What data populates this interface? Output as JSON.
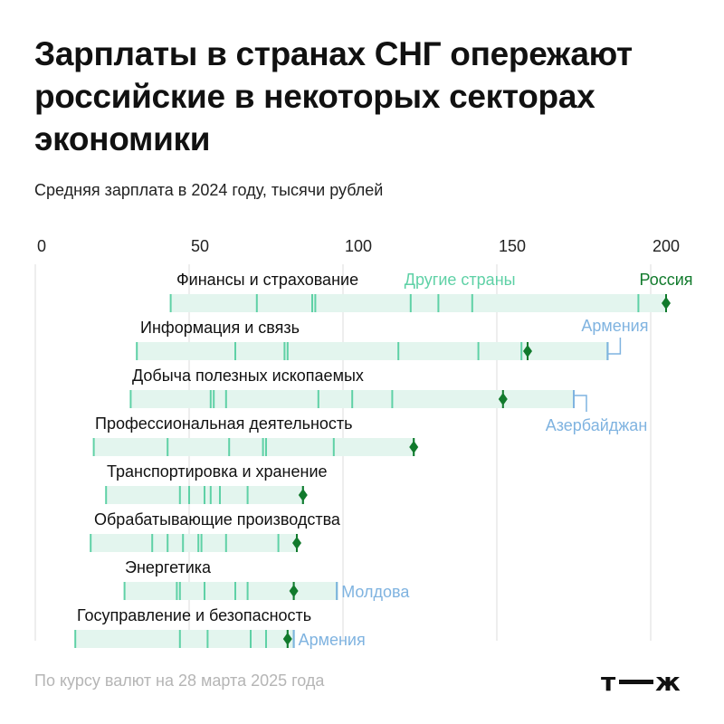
{
  "title": "Зарплаты в странах СНГ опережают российские в некоторых секторах экономики",
  "subtitle": "Средняя зарплата в 2024 году, тысячи рублей",
  "footnote": "По курсу валют на 28 марта 2025 года",
  "logo_text": "т—ж",
  "colors": {
    "band": "#e3f5ee",
    "tick": "#5fd1a6",
    "russia": "#117a2c",
    "highlight": "#7fb3e0",
    "gridline": "#e8e8e8",
    "axis_text": "#222222"
  },
  "chart_data": {
    "type": "dot-strip",
    "xlim": [
      0,
      210
    ],
    "x_ticks": [
      0,
      50,
      100,
      150,
      200
    ],
    "legend": [
      {
        "label": "Другие страны",
        "color": "#5fd1a6"
      },
      {
        "label": "Россия",
        "color": "#117a2c"
      }
    ],
    "sectors": [
      {
        "name": "Финансы и страхование",
        "russia": 205,
        "others": [
          44,
          72,
          90,
          91,
          122,
          131,
          142,
          196,
          205
        ],
        "highlight": null
      },
      {
        "name": "Информация и связь",
        "russia": 160,
        "others": [
          33,
          65,
          81,
          82,
          118,
          144,
          158,
          186
        ],
        "highlight": {
          "value": 186,
          "label": "Армения"
        }
      },
      {
        "name": "Добыча полезных ископаемых",
        "russia": 152,
        "others": [
          31,
          57,
          58,
          62,
          92,
          103,
          116,
          175
        ],
        "highlight": {
          "value": 175,
          "label": "Азербайджан"
        }
      },
      {
        "name": "Профессиональная деятельность",
        "russia": 123,
        "others": [
          19,
          43,
          63,
          74,
          75,
          97,
          123
        ],
        "highlight": null
      },
      {
        "name": "Транспортировка и хранение",
        "russia": 87,
        "others": [
          23,
          47,
          50,
          55,
          57,
          60,
          69,
          87
        ],
        "highlight": null
      },
      {
        "name": "Обрабатывающие производства",
        "russia": 85,
        "others": [
          18,
          38,
          43,
          48,
          53,
          54,
          62,
          79,
          85
        ],
        "highlight": null
      },
      {
        "name": "Энергетика",
        "russia": 84,
        "others": [
          29,
          46,
          47,
          55,
          65,
          69,
          84,
          98
        ],
        "highlight": {
          "value": 98,
          "label": "Молдова"
        }
      },
      {
        "name": "Госуправление и безопасность",
        "russia": 82,
        "others": [
          13,
          47,
          56,
          70,
          75,
          82,
          84
        ],
        "highlight": {
          "value": 84,
          "label": "Армения"
        }
      }
    ]
  }
}
